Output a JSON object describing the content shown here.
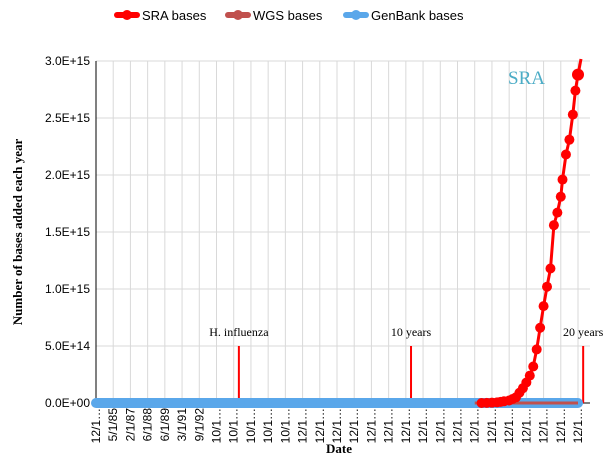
{
  "chart_data": {
    "type": "line",
    "title": "",
    "xlabel": "Date",
    "ylabel": "Number of bases added each year",
    "ylim": [
      0,
      3000000000000000.0
    ],
    "y_tick_labels": [
      "0.0E+00",
      "5.0E+14",
      "1.0E+15",
      "1.5E+15",
      "2.0E+15",
      "2.5E+15",
      "3.0E+15"
    ],
    "y_tick_values": [
      0,
      500000000000000.0,
      1000000000000000.0,
      1500000000000000.0,
      2000000000000000.0,
      2500000000000000.0,
      3000000000000000.0
    ],
    "x_tick_labels": [
      "12/1…",
      "5/1/85",
      "2/1/87",
      "6/1/88",
      "6/1/89",
      "3/1/91",
      "9/1/92",
      "10/1…",
      "10/1…",
      "10/1…",
      "10/1…",
      "10/1…",
      "12/1…",
      "12/1…",
      "12/1…",
      "12/1…",
      "12/1…",
      "12/1…",
      "12/1…",
      "12/1…",
      "12/1…",
      "12/1…",
      "12/1…",
      "12/1…",
      "12/1…",
      "12/1…",
      "12/1…",
      "12/1…",
      "12/1…"
    ],
    "grid": true,
    "legend_position": "top",
    "series": [
      {
        "name": "SRA bases",
        "color": "#ff0000",
        "x_index": [
          22.4,
          22.7,
          23.0,
          23.3,
          23.5,
          23.7,
          24.0,
          24.2,
          24.4,
          24.6,
          24.8,
          25.0,
          25.2,
          25.4,
          25.6,
          25.8,
          26.0,
          26.2,
          26.4,
          26.6,
          26.8,
          27.0,
          27.1,
          27.3,
          27.5,
          27.7,
          27.85,
          28.0
        ],
        "values": [
          0.0,
          1000000000000.0,
          3000000000000.0,
          6000000000000.0,
          10000000000000.0,
          15000000000000.0,
          22000000000000.0,
          35000000000000.0,
          50000000000000.0,
          90000000000000.0,
          130000000000000.0,
          180000000000000.0,
          240000000000000.0,
          320000000000000.0,
          470000000000000.0,
          660000000000000.0,
          850000000000000.0,
          1020000000000000.0,
          1180000000000000.0,
          1560000000000000.0,
          1670000000000000.0,
          1810000000000000.0,
          1960000000000000.0,
          2180000000000000.0,
          2310000000000000.0,
          2530000000000000.0,
          2740000000000000.0,
          2880000000000000.0
        ]
      },
      {
        "name": "WGS bases",
        "color": "#c0504d",
        "x_index": [
          22.0,
          28.0
        ],
        "values": [
          0,
          0
        ]
      },
      {
        "name": "GenBank bases",
        "color": "#5aa7ea",
        "x_index": [
          0,
          28.0
        ],
        "values": [
          0,
          0
        ]
      }
    ],
    "annotations": [
      {
        "text": "H. influenza",
        "x_index": 8.3,
        "bar_height": 500000000000000.0
      },
      {
        "text": "10 years",
        "x_index": 18.3,
        "bar_height": 500000000000000.0
      },
      {
        "text": "20 years",
        "x_index": 28.3,
        "bar_height": 500000000000000.0
      }
    ],
    "inline_label": {
      "text": "SRA",
      "color": "#4bacc6"
    }
  }
}
